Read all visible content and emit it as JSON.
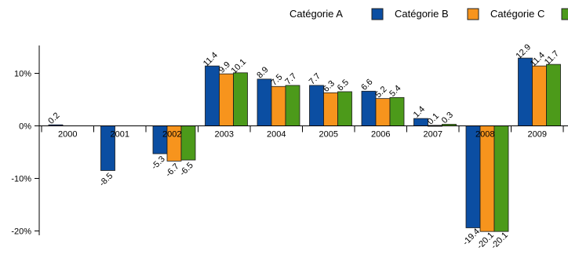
{
  "chart_data": {
    "type": "bar",
    "title": "",
    "xlabel": "",
    "ylabel": "",
    "categories": [
      "2000",
      "2001",
      "2002",
      "2003",
      "2004",
      "2005",
      "2006",
      "2007",
      "2008",
      "2009"
    ],
    "series": [
      {
        "name": "Catégorie A",
        "color": "#0b4ea2",
        "values": [
          0.2,
          -8.5,
          -5.3,
          11.4,
          8.9,
          7.7,
          6.6,
          1.4,
          -19.4,
          12.9
        ],
        "labels": [
          "0.2",
          "-8.5",
          "-5.3",
          "11.4",
          "8.9",
          "7.7",
          "6.6",
          "1.4",
          "-19.4",
          "12.9"
        ]
      },
      {
        "name": "Catégorie B",
        "color": "#f7941d",
        "values": [
          null,
          null,
          -6.7,
          9.9,
          7.5,
          6.3,
          5.2,
          0.1,
          -20.1,
          11.4
        ],
        "labels": [
          "",
          "",
          "-6.7",
          "9.9",
          "7.5",
          "6.3",
          "5.2",
          "0.1",
          "-20.1",
          "11.4"
        ]
      },
      {
        "name": "Catégorie C",
        "color": "#4c9a1a",
        "values": [
          null,
          null,
          -6.5,
          10.1,
          7.7,
          6.5,
          5.4,
          0.3,
          -20.1,
          11.7
        ],
        "labels": [
          "",
          "",
          "-6.5",
          "10.1",
          "7.7",
          "6.5",
          "5.4",
          "0.3",
          "-20.1",
          "11.7"
        ]
      }
    ],
    "yticks": [
      {
        "value": 10,
        "label": "10%"
      },
      {
        "value": 0,
        "label": "0%"
      },
      {
        "value": -10,
        "label": "-10%"
      },
      {
        "value": -20,
        "label": "-20%"
      }
    ],
    "ylim": [
      -22,
      14
    ],
    "grid": false,
    "legend_position": "top-right"
  }
}
